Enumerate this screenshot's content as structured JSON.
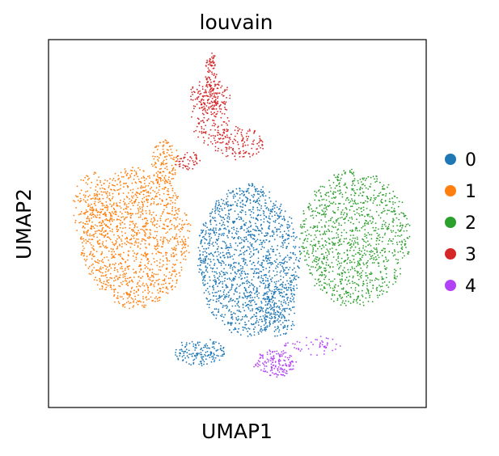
{
  "chart_data": {
    "type": "scatter",
    "title": "louvain",
    "xlabel": "UMAP1",
    "ylabel": "UMAP2",
    "grid": false,
    "ticks": false,
    "legend_position": "right",
    "xlim": [
      0,
      10
    ],
    "ylim": [
      0,
      10
    ],
    "series": [
      {
        "name": "0",
        "color": "#1f77b4",
        "clusters": [
          {
            "cx": 5.3,
            "cy": 4.0,
            "rx": 1.35,
            "ry": 2.05,
            "n": 1500
          },
          {
            "cx": 4.0,
            "cy": 1.5,
            "rx": 0.7,
            "ry": 0.35,
            "n": 160
          },
          {
            "cx": 6.1,
            "cy": 2.6,
            "rx": 0.45,
            "ry": 0.7,
            "n": 140
          }
        ]
      },
      {
        "name": "1",
        "color": "#ff7f0e",
        "clusters": [
          {
            "cx": 2.3,
            "cy": 4.6,
            "rx": 1.45,
            "ry": 1.9,
            "n": 1300
          },
          {
            "cx": 3.1,
            "cy": 6.7,
            "rx": 0.35,
            "ry": 0.6,
            "n": 120
          },
          {
            "cx": 1.2,
            "cy": 5.4,
            "rx": 0.55,
            "ry": 1.0,
            "n": 160
          }
        ]
      },
      {
        "name": "2",
        "color": "#2ca02c",
        "clusters": [
          {
            "cx": 8.1,
            "cy": 4.6,
            "rx": 1.45,
            "ry": 1.85,
            "n": 1100
          }
        ]
      },
      {
        "name": "3",
        "color": "#d62728",
        "clusters": [
          {
            "cx": 4.3,
            "cy": 7.9,
            "rx": 0.5,
            "ry": 0.75,
            "n": 160
          },
          {
            "cx": 4.3,
            "cy": 8.5,
            "rx": 0.55,
            "ry": 0.4,
            "n": 110
          },
          {
            "cx": 4.3,
            "cy": 9.1,
            "rx": 0.15,
            "ry": 0.55,
            "n": 70
          },
          {
            "cx": 5.0,
            "cy": 7.2,
            "rx": 0.75,
            "ry": 0.45,
            "n": 140
          },
          {
            "cx": 3.7,
            "cy": 6.7,
            "rx": 0.35,
            "ry": 0.25,
            "n": 50
          }
        ]
      },
      {
        "name": "4",
        "color": "#b142f5",
        "clusters": [
          {
            "cx": 6.0,
            "cy": 1.2,
            "rx": 0.55,
            "ry": 0.35,
            "n": 150
          },
          {
            "cx": 7.0,
            "cy": 1.7,
            "rx": 0.75,
            "ry": 0.25,
            "n": 50
          }
        ]
      }
    ]
  }
}
